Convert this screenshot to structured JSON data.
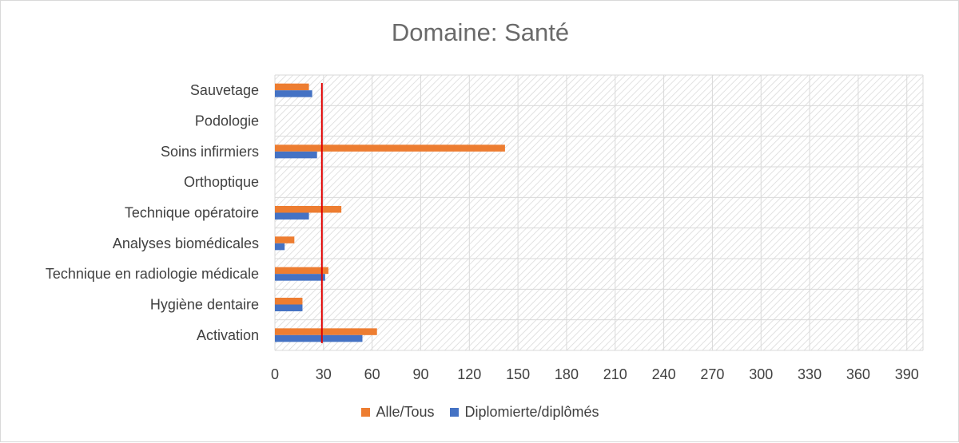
{
  "chart_data": {
    "type": "bar",
    "orientation": "horizontal",
    "title": "Domaine: Santé",
    "categories": [
      "Sauvetage",
      "Podologie",
      "Soins infirmiers",
      "Orthoptique",
      "Technique opératoire",
      "Analyses biomédicales",
      "Technique en radiologie médicale",
      "Hygiène dentaire",
      "Activation"
    ],
    "series": [
      {
        "name": "Alle/Tous",
        "color": "#ED7D31",
        "values": [
          21,
          0,
          142,
          0,
          41,
          12,
          33,
          17,
          63
        ]
      },
      {
        "name": "Diplomierte/diplômés",
        "color": "#4472C4",
        "values": [
          23,
          0,
          26,
          0,
          21,
          6,
          31,
          17,
          54
        ]
      }
    ],
    "xlim": [
      0,
      400
    ],
    "xticks": [
      0,
      30,
      60,
      90,
      120,
      150,
      180,
      210,
      240,
      270,
      300,
      330,
      360,
      390
    ],
    "reference_line": {
      "value": 29,
      "color": "#E00000"
    },
    "grid": true,
    "plot_background": "hatched",
    "legend_position": "bottom"
  }
}
